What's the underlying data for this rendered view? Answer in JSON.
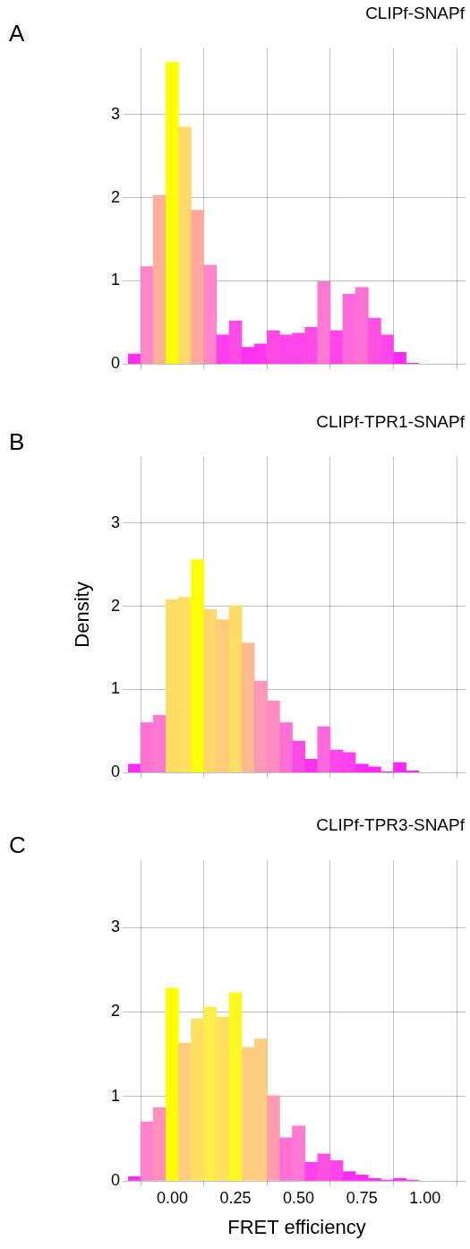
{
  "chart_data": [
    {
      "type": "histogram",
      "title": "CLIPf-SNAPf",
      "annotations": [
        "A"
      ],
      "bins": [
        -0.175,
        -0.125,
        -0.075,
        -0.025,
        0.025,
        0.075,
        0.125,
        0.175,
        0.225,
        0.275,
        0.325,
        0.375,
        0.425,
        0.475,
        0.525,
        0.575,
        0.625,
        0.675,
        0.725,
        0.775,
        0.825,
        0.875,
        0.925,
        0.975
      ],
      "values": [
        0.12,
        1.17,
        2.03,
        3.63,
        2.85,
        1.85,
        1.19,
        0.35,
        0.52,
        0.2,
        0.24,
        0.4,
        0.35,
        0.37,
        0.44,
        0.99,
        0.4,
        0.84,
        0.92,
        0.55,
        0.35,
        0.14,
        0.01
      ],
      "colors": [
        "#ff2af5",
        "#ff85c8",
        "#ffb09a",
        "#ffff00",
        "#ffd86c",
        "#ffa8a0",
        "#ff85c8",
        "#ff3ef0",
        "#ff4ae6",
        "#ff30f2",
        "#ff36f0",
        "#ff4ae6",
        "#ff45eb",
        "#ff45eb",
        "#ff4ae6",
        "#ff78d2",
        "#ff45eb",
        "#ff68da",
        "#ff70d5",
        "#ff50e4",
        "#ff45eb",
        "#ff2af5",
        "#ff2af5"
      ],
      "xlim": [
        -0.175,
        1.16
      ],
      "xticks": [
        {
          "value": 0,
          "label": null
        },
        {
          "value": 0.25,
          "label": null
        },
        {
          "value": 0.5,
          "label": null
        },
        {
          "value": 0.75,
          "label": null
        },
        {
          "value": 1,
          "label": null
        }
      ],
      "ylim": [
        0,
        3.8
      ],
      "yticks": [
        0,
        1,
        2,
        3
      ],
      "grid": true,
      "tick_labels": "y"
    },
    {
      "type": "histogram",
      "title": "CLIPf-TPR1-SNAPf",
      "annotations": [
        "B"
      ],
      "ylabel": "Density",
      "bins": [
        -0.175,
        -0.125,
        -0.075,
        -0.025,
        0.025,
        0.075,
        0.125,
        0.175,
        0.225,
        0.275,
        0.325,
        0.375,
        0.425,
        0.475,
        0.525,
        0.575,
        0.625,
        0.675,
        0.725,
        0.775,
        0.825,
        0.875,
        0.925,
        0.975
      ],
      "values": [
        0.1,
        0.6,
        0.69,
        2.08,
        2.11,
        2.56,
        1.96,
        1.84,
        2.01,
        1.56,
        1.1,
        0.86,
        0.6,
        0.38,
        0.16,
        0.55,
        0.27,
        0.24,
        0.1,
        0.07,
        0.01,
        0.12,
        0.02
      ],
      "colors": [
        "#ff2af5",
        "#ff70d5",
        "#ff78d2",
        "#ffdc64",
        "#ffe060",
        "#ffff00",
        "#ffd86c",
        "#ffcc78",
        "#ffdc64",
        "#ffbb90",
        "#ff98b8",
        "#ff8cc0",
        "#ff70d5",
        "#ff4ae6",
        "#ff30f2",
        "#ff68da",
        "#ff45eb",
        "#ff40ee",
        "#ff2af5",
        "#ff2af5",
        "#ff2af5",
        "#ff2af5",
        "#ff2af5"
      ],
      "xlim": [
        -0.175,
        1.16
      ],
      "xticks": [
        {
          "value": 0,
          "label": null
        },
        {
          "value": 0.25,
          "label": null
        },
        {
          "value": 0.5,
          "label": null
        },
        {
          "value": 0.75,
          "label": null
        },
        {
          "value": 1,
          "label": null
        }
      ],
      "ylim": [
        0,
        3.8
      ],
      "yticks": [
        0,
        1,
        2,
        3
      ],
      "grid": true,
      "tick_labels": "y"
    },
    {
      "type": "histogram",
      "title": "CLIPf-TPR3-SNAPf",
      "annotations": [
        "C"
      ],
      "xlabel": "FRET efficiency",
      "bins": [
        -0.175,
        -0.125,
        -0.075,
        -0.025,
        0.025,
        0.075,
        0.125,
        0.175,
        0.225,
        0.275,
        0.325,
        0.375,
        0.425,
        0.475,
        0.525,
        0.575,
        0.625,
        0.675,
        0.725,
        0.775,
        0.825,
        0.875,
        0.925,
        0.975
      ],
      "values": [
        0.05,
        0.7,
        0.87,
        2.28,
        1.63,
        1.92,
        2.06,
        1.94,
        2.23,
        1.58,
        1.68,
        1.01,
        0.51,
        0.65,
        0.22,
        0.32,
        0.24,
        0.11,
        0.07,
        0.03,
        0.01,
        0.03,
        0.01
      ],
      "colors": [
        "#ff2af5",
        "#ff80cc",
        "#ff90bd",
        "#ffff00",
        "#ffcc80",
        "#ffe060",
        "#ffee48",
        "#ffe060",
        "#fff820",
        "#ffcc80",
        "#ffcc80",
        "#ff9cb0",
        "#ff70d5",
        "#ff78d2",
        "#ff40ee",
        "#ff50e4",
        "#ff45eb",
        "#ff2af5",
        "#ff2af5",
        "#ff2af5",
        "#ff2af5",
        "#ff2af5",
        "#ff2af5"
      ],
      "xlim": [
        -0.175,
        1.16
      ],
      "xticks": [
        {
          "value": 0,
          "label": "0.00"
        },
        {
          "value": 0.25,
          "label": "0.25"
        },
        {
          "value": 0.5,
          "label": "0.50"
        },
        {
          "value": 0.75,
          "label": "0.75"
        },
        {
          "value": 1,
          "label": "1.00"
        }
      ],
      "ylim": [
        0,
        3.8
      ],
      "yticks": [
        0,
        1,
        2,
        3
      ],
      "grid": true
    }
  ]
}
